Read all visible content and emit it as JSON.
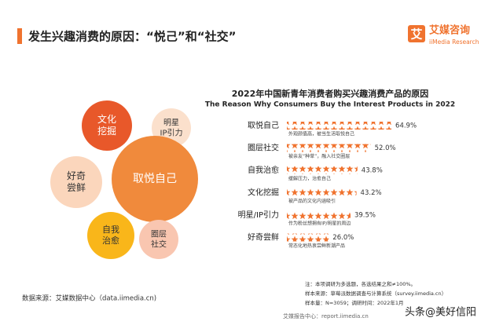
{
  "header": {
    "title": "发生兴趣消费的原因：“悦己”和“社交”"
  },
  "logo": {
    "name": "艾媒咨询",
    "english": "iiMedia Research",
    "mark": "艾"
  },
  "bubbles": [
    [
      "文化",
      "挖掘"
    ],
    [
      "明星",
      "IP引力"
    ],
    [
      "好奇",
      "尝鲜"
    ],
    [
      "取悦自己"
    ],
    [
      "自我",
      "治愈"
    ],
    [
      "圈层",
      "社交"
    ]
  ],
  "chart_data": {
    "type": "bar",
    "orientation": "horizontal",
    "title": "2022年中国新青年消费者购买兴趣消费产品的原因",
    "subtitle": "The Reason Why Consumers Buy the Interest Products in 2022",
    "categories": [
      "取悦自己",
      "圈层社交",
      "自我治愈",
      "文化挖掘",
      "明星/IP引力",
      "好奇尝鲜"
    ],
    "descriptions": [
      "外观颜值高，被当生活取悦自己",
      "被亲友“种草”，融入社交圈层",
      "缓解压力，治愈自己",
      "被产品的文化内涵吸引",
      "作为粉丝想拥有IP/明星的周边",
      "常态化地热衷尝鲜新潮产品"
    ],
    "values": [
      64.9,
      52.0,
      43.8,
      43.2,
      39.5,
      26.0
    ],
    "value_labels": [
      "64.9%",
      "52.0%",
      "43.8%",
      "43.2%",
      "39.5%",
      "26.0%"
    ],
    "color": "#f0732f",
    "xlim": [
      0,
      100
    ]
  },
  "notes": [
    "注：本项调研为多选题，各选结果之和≠100%。",
    "样本来源：草莓派数据调查与计算系统（survey.iimedia.cn）",
    "样本量：N=3059；调研时间：2022年1月"
  ],
  "source": "数据来源：艾媒数据中心（data.iimedia.cn)",
  "footer": {
    "site": "艾媒报告中心：report.iimedia.cn",
    "watermark": "头条@美好信阳"
  }
}
